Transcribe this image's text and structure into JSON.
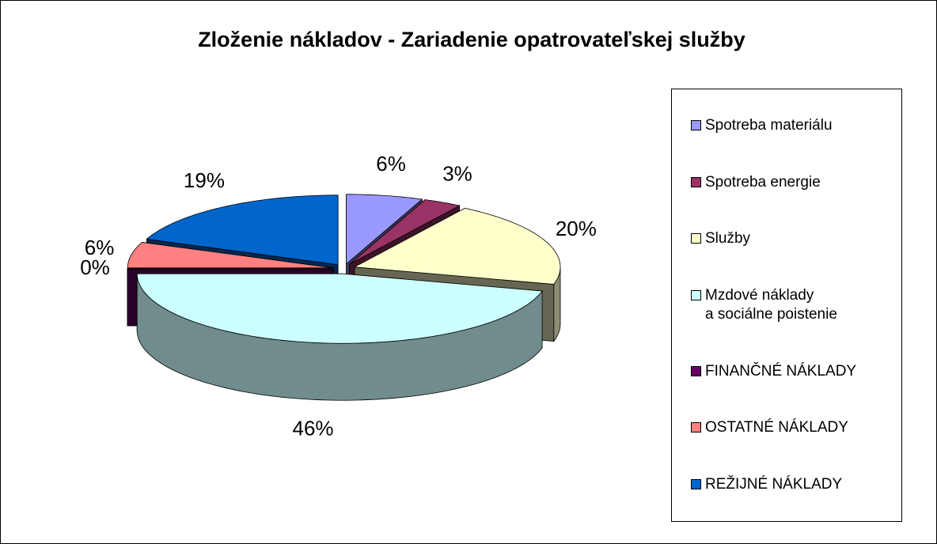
{
  "chart_data": {
    "type": "pie",
    "title": "Zloženie nákladov  - Zariadenie opatrovateľskej služby",
    "categories": [
      "Spotreba materiálu",
      "Spotreba energie",
      "Služby",
      "Mzdové náklady\na sociálne poistenie",
      "FINANČNÉ NÁKLADY",
      "OSTATNÉ NÁKLADY",
      "REŽIJNÉ NÁKLADY"
    ],
    "values": [
      6,
      3,
      20,
      46,
      0,
      6,
      19
    ],
    "value_labels": [
      "6%",
      "3%",
      "20%",
      "46%",
      "0%",
      "6%",
      "19%"
    ],
    "colors": [
      "#9999ff",
      "#993366",
      "#ffffcc",
      "#ccffff",
      "#660066",
      "#ff8080",
      "#0066cc"
    ],
    "legend": "right"
  }
}
